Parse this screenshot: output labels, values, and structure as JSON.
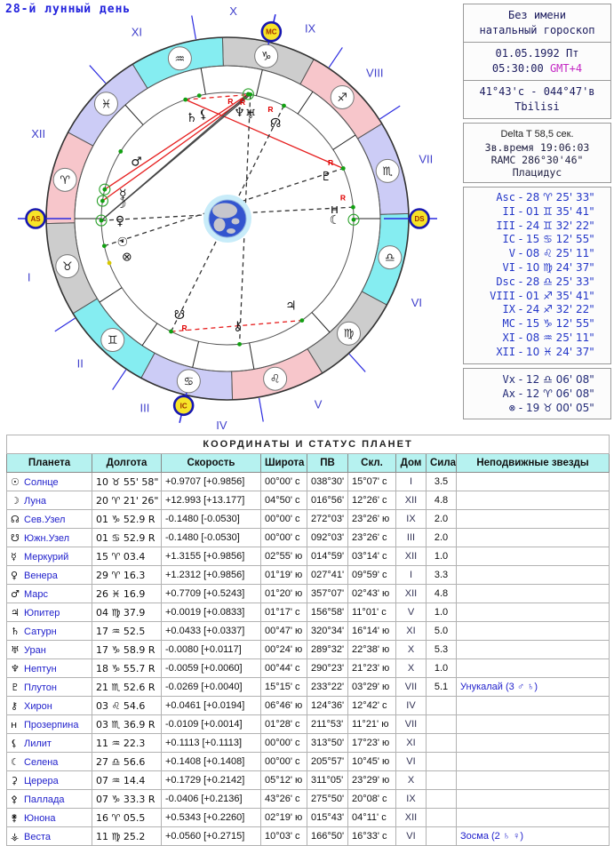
{
  "title": "28-й лунный день",
  "header_panels": {
    "name1": "Без имени",
    "name2": "натальный гороскоп",
    "date": "01.05.1992 Пт",
    "time": "05:30:00",
    "tz": "GMT+4",
    "coords": "41°43'с - 044°47'в",
    "city": "Tbilisi",
    "delta_t": "Delta T  58,5 сек.",
    "sid_time": "Зв.время 19:06:03",
    "ramc": "RAMC 286°30'46\"",
    "house_system": "Плацидус"
  },
  "cusps_panel": {
    "rows": [
      {
        "label": "Asc",
        "value": "28 ♈ 25' 33\""
      },
      {
        "label": "II",
        "value": "01 ♊ 35' 41\""
      },
      {
        "label": "III",
        "value": "24 ♊ 32' 22\""
      },
      {
        "label": "IC",
        "value": "15 ♋ 12' 55\""
      },
      {
        "label": "V",
        "value": "08 ♌ 25' 11\""
      },
      {
        "label": "VI",
        "value": "10 ♍ 24' 37\""
      },
      {
        "label": "Dsc",
        "value": "28 ♎ 25' 33\""
      },
      {
        "label": "VIII",
        "value": "01 ♐ 35' 41\""
      },
      {
        "label": "IX",
        "value": "24 ♐ 32' 22\""
      },
      {
        "label": "MC",
        "value": "15 ♑ 12' 55\""
      },
      {
        "label": "XI",
        "value": "08 ♒ 25' 11\""
      },
      {
        "label": "XII",
        "value": "10 ♓ 24' 37\""
      }
    ]
  },
  "points_panel": {
    "rows": [
      {
        "label": "Vx",
        "value": "12 ♎ 06' 08\""
      },
      {
        "label": "Ax",
        "value": "12 ♈ 06' 08\""
      },
      {
        "label": "⊗",
        "value": "19 ♉ 00' 05\""
      }
    ]
  },
  "table": {
    "title": "КООРДИНАТЫ И СТАТУС ПЛАНЕТ",
    "columns": [
      "Планета",
      "Долгота",
      "Скорость",
      "Широта",
      "ПВ",
      "Скл.",
      "Дом",
      "Сила",
      "Неподвижные звезды"
    ],
    "rows": [
      {
        "glyph": "☉",
        "name": "Солнце",
        "lon": "10 ♉ 55' 58\"",
        "speed": "+0.9707  [+0.9856]",
        "lat": "00°00' с",
        "pv": "038°30'",
        "decl": "15°07' с",
        "house": "I",
        "power": "3.5",
        "stars": ""
      },
      {
        "glyph": "☽",
        "name": "Луна",
        "lon": "20 ♈ 21' 26\"",
        "speed": "+12.993  [+13.177]",
        "lat": "04°50' с",
        "pv": "016°56'",
        "decl": "12°26' с",
        "house": "XII",
        "power": "4.8",
        "stars": ""
      },
      {
        "glyph": "☊",
        "name": "Сев.Узел",
        "lon": "01 ♑ 52.9 R",
        "speed": "-0.1480  [-0.0530]",
        "lat": "00°00' с",
        "pv": "272°03'",
        "decl": "23°26' ю",
        "house": "IX",
        "power": "2.0",
        "stars": ""
      },
      {
        "glyph": "☋",
        "name": "Южн.Узел",
        "lon": "01 ♋ 52.9 R",
        "speed": "-0.1480  [-0.0530]",
        "lat": "00°00' с",
        "pv": "092°03'",
        "decl": "23°26' с",
        "house": "III",
        "power": "2.0",
        "stars": ""
      },
      {
        "glyph": "☿",
        "name": "Меркурий",
        "lon": "15 ♈ 03.4",
        "speed": "+1.3155  [+0.9856]",
        "lat": "02°55' ю",
        "pv": "014°59'",
        "decl": "03°14' с",
        "house": "XII",
        "power": "1.0",
        "stars": ""
      },
      {
        "glyph": "♀",
        "name": "Венера",
        "lon": "29 ♈ 16.3",
        "speed": "+1.2312  [+0.9856]",
        "lat": "01°19' ю",
        "pv": "027°41'",
        "decl": "09°59' с",
        "house": "I",
        "power": "3.3",
        "stars": ""
      },
      {
        "glyph": "♂",
        "name": "Марс",
        "lon": "26 ♓ 16.9",
        "speed": "+0.7709  [+0.5243]",
        "lat": "01°20' ю",
        "pv": "357°07'",
        "decl": "02°43' ю",
        "house": "XII",
        "power": "4.8",
        "stars": ""
      },
      {
        "glyph": "♃",
        "name": "Юпитер",
        "lon": "04 ♍ 37.9",
        "speed": "+0.0019  [+0.0833]",
        "lat": "01°17' с",
        "pv": "156°58'",
        "decl": "11°01' с",
        "house": "V",
        "power": "1.0",
        "stars": ""
      },
      {
        "glyph": "♄",
        "name": "Сатурн",
        "lon": "17 ♒ 52.5",
        "speed": "+0.0433  [+0.0337]",
        "lat": "00°47' ю",
        "pv": "320°34'",
        "decl": "16°14' ю",
        "house": "XI",
        "power": "5.0",
        "stars": ""
      },
      {
        "glyph": "♅",
        "name": "Уран",
        "lon": "17 ♑ 58.9 R",
        "speed": "-0.0080  [+0.0117]",
        "lat": "00°24' ю",
        "pv": "289°32'",
        "decl": "22°38' ю",
        "house": "X",
        "power": "5.3",
        "stars": ""
      },
      {
        "glyph": "♆",
        "name": "Нептун",
        "lon": "18 ♑ 55.7 R",
        "speed": "-0.0059  [+0.0060]",
        "lat": "00°44' с",
        "pv": "290°23'",
        "decl": "21°23' ю",
        "house": "X",
        "power": "1.0",
        "stars": ""
      },
      {
        "glyph": "♇",
        "name": "Плутон",
        "lon": "21 ♏ 52.6 R",
        "speed": "-0.0269  [+0.0040]",
        "lat": "15°15' с",
        "pv": "233°22'",
        "decl": "03°29' ю",
        "house": "VII",
        "power": "5.1",
        "stars": "Унукалай (3 ♂ ♄)"
      },
      {
        "glyph": "⚷",
        "name": "Хирон",
        "lon": "03 ♌ 54.6",
        "speed": "+0.0461  [+0.0194]",
        "lat": "06°46' ю",
        "pv": "124°36'",
        "decl": "12°42' с",
        "house": "IV",
        "power": "",
        "stars": ""
      },
      {
        "glyph": "н",
        "name": "Прозерпина",
        "lon": "03 ♏ 36.9 R",
        "speed": "-0.0109  [+0.0014]",
        "lat": "01°28' с",
        "pv": "211°53'",
        "decl": "11°21' ю",
        "house": "VII",
        "power": "",
        "stars": ""
      },
      {
        "glyph": "⚸",
        "name": "Лилит",
        "lon": "11 ♒ 22.3",
        "speed": "+0.1113  [+0.1113]",
        "lat": "00°00' с",
        "pv": "313°50'",
        "decl": "17°23' ю",
        "house": "XI",
        "power": "",
        "stars": ""
      },
      {
        "glyph": "☾",
        "name": "Селена",
        "lon": "27 ♎ 56.6",
        "speed": "+0.1408  [+0.1408]",
        "lat": "00°00' с",
        "pv": "205°57'",
        "decl": "10°45' ю",
        "house": "VI",
        "power": "",
        "stars": ""
      },
      {
        "glyph": "⚳",
        "name": "Церера",
        "lon": "07 ♒ 14.4",
        "speed": "+0.1729  [+0.2142]",
        "lat": "05°12' ю",
        "pv": "311°05'",
        "decl": "23°29' ю",
        "house": "X",
        "power": "",
        "stars": ""
      },
      {
        "glyph": "⚴",
        "name": "Паллада",
        "lon": "07 ♑ 33.3 R",
        "speed": "-0.0406  [+0.2136]",
        "lat": "43°26' с",
        "pv": "275°50'",
        "decl": "20°08' с",
        "house": "IX",
        "power": "",
        "stars": ""
      },
      {
        "glyph": "⚵",
        "name": "Юнона",
        "lon": "16 ♈ 05.5",
        "speed": "+0.5343  [+0.2260]",
        "lat": "02°19' ю",
        "pv": "015°43'",
        "decl": "04°11' с",
        "house": "XII",
        "power": "",
        "stars": ""
      },
      {
        "glyph": "⚶",
        "name": "Веста",
        "lon": "11 ♍ 25.2",
        "speed": "+0.0560  [+0.2715]",
        "lat": "10°03' с",
        "pv": "166°50'",
        "decl": "16°33' с",
        "house": "VI",
        "power": "",
        "stars": "Зосма (2 ♄ ♀)"
      }
    ]
  },
  "wheel": {
    "asc_deg": 28.43,
    "cusps": [
      28.43,
      61.59,
      84.54,
      105.22,
      128.42,
      160.41,
      208.43,
      241.59,
      264.54,
      285.22,
      308.42,
      340.41
    ],
    "house_labels": [
      "I",
      "II",
      "III",
      "IV",
      "V",
      "VI",
      "VII",
      "VIII",
      "IX",
      "X",
      "XI",
      "XII"
    ],
    "axes": [
      {
        "cusp": 0,
        "label": "AS"
      },
      {
        "cusp": 3,
        "label": "IC"
      },
      {
        "cusp": 6,
        "label": "DS"
      },
      {
        "cusp": 9,
        "label": "MC"
      }
    ],
    "sign_glyphs": [
      "♈",
      "♉",
      "♊",
      "♋",
      "♌",
      "♍",
      "♎",
      "♏",
      "♐",
      "♑",
      "♒",
      "♓"
    ],
    "element_colors": {
      "fire": "#f7c6cb",
      "earth": "#cdcdcd",
      "air": "#85edf1",
      "water": "#ccccf6"
    },
    "planets": [
      {
        "glyph": "☿",
        "lon": 15.06,
        "ring": true
      },
      {
        "glyph": "☽",
        "lon": 20.36,
        "ring": true
      },
      {
        "glyph": "♀",
        "lon": 29.27,
        "ring": true
      },
      {
        "glyph": "☉",
        "lon": 40.93
      },
      {
        "glyph": "⊗",
        "lon": 49.0,
        "dot": "#d8c800"
      },
      {
        "glyph": "♂",
        "lon": 356.28
      },
      {
        "glyph": "♄",
        "lon": 317.88
      },
      {
        "glyph": "⚸",
        "lon": 311.37
      },
      {
        "glyph": "♆",
        "lon": 288.93,
        "dlon": 292.0,
        "retro": true,
        "ring": true
      },
      {
        "glyph": "♅",
        "lon": 287.98,
        "dlon": 286.0,
        "retro": true
      },
      {
        "glyph": "☊",
        "lon": 271.88,
        "retro": true
      },
      {
        "glyph": "♇",
        "lon": 231.88,
        "retro": true
      },
      {
        "glyph": "н",
        "lon": 213.62,
        "retro": true
      },
      {
        "glyph": "☾",
        "lon": 207.94,
        "ring": true
      },
      {
        "glyph": "☋",
        "lon": 91.88,
        "retro": true
      },
      {
        "glyph": "⚷",
        "lon": 123.91
      },
      {
        "glyph": "♃",
        "lon": 154.63
      }
    ],
    "aspects": [
      {
        "a": 15.06,
        "b": 288.93,
        "style": "red"
      },
      {
        "a": 20.36,
        "b": 287.98,
        "style": "red"
      },
      {
        "a": 317.88,
        "b": 231.88,
        "style": "red"
      },
      {
        "a": 29.27,
        "b": 287.98,
        "style": "black"
      },
      {
        "a": 29.27,
        "b": 288.93,
        "style": "black"
      },
      {
        "a": 40.93,
        "b": 231.88,
        "style": "dash-black"
      },
      {
        "a": 29.27,
        "b": 213.62,
        "style": "dash-black"
      },
      {
        "a": 271.88,
        "b": 91.88,
        "style": "dash-black"
      },
      {
        "a": 287.98,
        "b": 123.91,
        "style": "dash-black"
      },
      {
        "a": 317.88,
        "b": 287.98,
        "style": "dash-red"
      },
      {
        "a": 91.88,
        "b": 154.63,
        "style": "dash-red"
      }
    ],
    "colors": {
      "cusp_line": "#2b2be0",
      "aspect_red": "#e62020",
      "aspect_black": "#444444",
      "badge_fill": "#f7e428",
      "badge_ring": "#1717b0",
      "badge_text": "#a03000",
      "house_label": "#4141cc",
      "dot": "#12a012",
      "earth_halo": "#c8ecf9",
      "earth_ocean": "#3355cf",
      "earth_land": "#c6c6cd"
    }
  }
}
